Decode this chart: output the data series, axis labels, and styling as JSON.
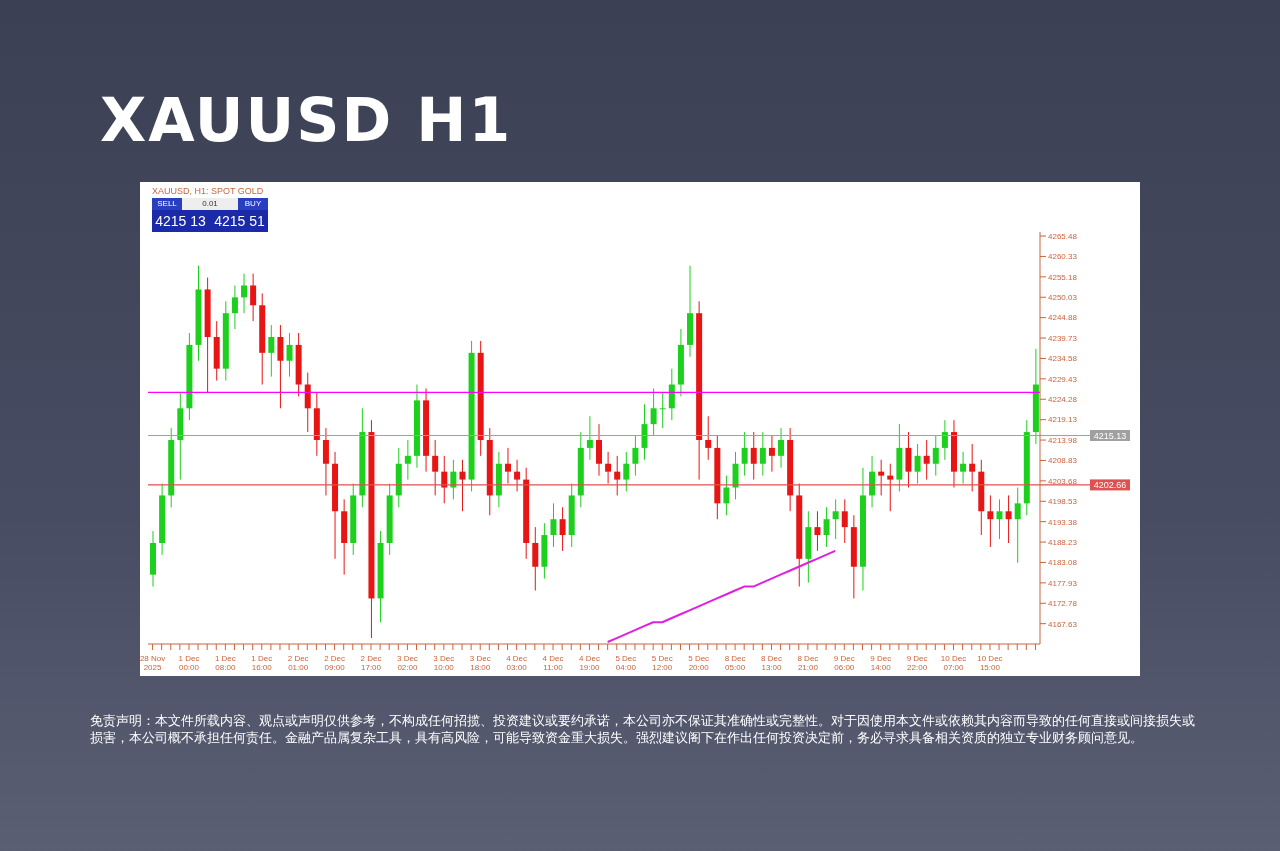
{
  "chart_data": {
    "type": "candlestick",
    "title": "XAUUSD H1",
    "categories": [
      "28 Nov 2025",
      null,
      null,
      null,
      "1 Dec 00:00",
      null,
      null,
      null,
      "1 Dec 08:00",
      null,
      null,
      null,
      "1 Dec 16:00",
      null,
      null,
      null,
      "2 Dec 01:00",
      null,
      null,
      null,
      "2 Dec 09:00",
      null,
      null,
      null,
      "2 Dec 17:00",
      null,
      null,
      null,
      "3 Dec 02:00",
      null,
      null,
      null,
      "3 Dec 10:00",
      null,
      null,
      null,
      "3 Dec 18:00",
      null,
      null,
      null,
      "4 Dec 03:00",
      null,
      null,
      null,
      "4 Dec 11:00",
      null,
      null,
      null,
      "4 Dec 19:00",
      null,
      null,
      null,
      "5 Dec 04:00",
      null,
      null,
      null,
      "5 Dec 12:00",
      null,
      null,
      null,
      "5 Dec 20:00",
      null,
      null,
      null,
      "8 Dec 05:00",
      null,
      null,
      null,
      "8 Dec 13:00",
      null,
      null,
      null,
      "8 Dec 21:00",
      null,
      null,
      null,
      "9 Dec 06:00",
      null,
      null,
      null,
      "9 Dec 14:00",
      null,
      null,
      null,
      "9 Dec 22:00",
      null,
      null,
      null,
      "10 Dec 07:00",
      null,
      null,
      null,
      "10 Dec 15:00",
      null,
      null,
      null,
      null,
      null
    ],
    "ohlc": [
      [
        4180,
        4191,
        4177,
        4188
      ],
      [
        4188,
        4203,
        4185,
        4200
      ],
      [
        4200,
        4217,
        4197,
        4214
      ],
      [
        4214,
        4226,
        4204,
        4222
      ],
      [
        4222,
        4241,
        4219,
        4238
      ],
      [
        4238,
        4258,
        4234,
        4252
      ],
      [
        4252,
        4255,
        4226,
        4240
      ],
      [
        4240,
        4244,
        4229,
        4232
      ],
      [
        4232,
        4249,
        4229,
        4246
      ],
      [
        4246,
        4253,
        4242,
        4250
      ],
      [
        4250,
        4256,
        4246,
        4253
      ],
      [
        4253,
        4256,
        4244,
        4248
      ],
      [
        4248,
        4251,
        4228,
        4236
      ],
      [
        4236,
        4243,
        4230,
        4240
      ],
      [
        4240,
        4243,
        4222,
        4234
      ],
      [
        4234,
        4241,
        4230,
        4238
      ],
      [
        4238,
        4241,
        4225,
        4228
      ],
      [
        4228,
        4231,
        4216,
        4222
      ],
      [
        4222,
        4226,
        4210,
        4214
      ],
      [
        4214,
        4217,
        4200,
        4208
      ],
      [
        4208,
        4211,
        4184,
        4196
      ],
      [
        4196,
        4199,
        4180,
        4188
      ],
      [
        4188,
        4203,
        4185,
        4200
      ],
      [
        4200,
        4222,
        4197,
        4216
      ],
      [
        4216,
        4219,
        4164,
        4174
      ],
      [
        4174,
        4191,
        4168,
        4188
      ],
      [
        4188,
        4203,
        4185,
        4200
      ],
      [
        4200,
        4212,
        4197,
        4208
      ],
      [
        4208,
        4214,
        4204,
        4210
      ],
      [
        4210,
        4228,
        4207,
        4224
      ],
      [
        4224,
        4227,
        4206,
        4210
      ],
      [
        4210,
        4214,
        4200,
        4206
      ],
      [
        4206,
        4210,
        4198,
        4202
      ],
      [
        4202,
        4209,
        4199,
        4206
      ],
      [
        4206,
        4209,
        4196,
        4204
      ],
      [
        4204,
        4239,
        4201,
        4236
      ],
      [
        4236,
        4239,
        4210,
        4214
      ],
      [
        4214,
        4217,
        4195,
        4200
      ],
      [
        4200,
        4211,
        4197,
        4208
      ],
      [
        4208,
        4212,
        4203,
        4206
      ],
      [
        4206,
        4209,
        4201,
        4204
      ],
      [
        4204,
        4207,
        4184,
        4188
      ],
      [
        4188,
        4192,
        4176,
        4182
      ],
      [
        4182,
        4193,
        4179,
        4190
      ],
      [
        4190,
        4198,
        4187,
        4194
      ],
      [
        4194,
        4197,
        4186,
        4190
      ],
      [
        4190,
        4203,
        4187,
        4200
      ],
      [
        4200,
        4216,
        4197,
        4212
      ],
      [
        4212,
        4220,
        4209,
        4214
      ],
      [
        4214,
        4218,
        4205,
        4208
      ],
      [
        4208,
        4211,
        4203,
        4206
      ],
      [
        4206,
        4210,
        4200,
        4204
      ],
      [
        4204,
        4211,
        4201,
        4208
      ],
      [
        4208,
        4215,
        4205,
        4212
      ],
      [
        4212,
        4223,
        4209,
        4218
      ],
      [
        4218,
        4227,
        4215,
        4222
      ],
      [
        4222,
        4226,
        4217,
        4222
      ],
      [
        4222,
        4232,
        4219,
        4228
      ],
      [
        4228,
        4242,
        4225,
        4238
      ],
      [
        4238,
        4258,
        4235,
        4246
      ],
      [
        4246,
        4249,
        4204,
        4214
      ],
      [
        4214,
        4220,
        4209,
        4212
      ],
      [
        4212,
        4215,
        4194,
        4198
      ],
      [
        4198,
        4205,
        4195,
        4202
      ],
      [
        4202,
        4211,
        4199,
        4208
      ],
      [
        4208,
        4216,
        4205,
        4212
      ],
      [
        4212,
        4216,
        4204,
        4208
      ],
      [
        4208,
        4216,
        4205,
        4212
      ],
      [
        4212,
        4215,
        4206,
        4210
      ],
      [
        4210,
        4217,
        4207,
        4214
      ],
      [
        4214,
        4217,
        4196,
        4200
      ],
      [
        4200,
        4203,
        4177,
        4184
      ],
      [
        4184,
        4196,
        4178,
        4192
      ],
      [
        4192,
        4196,
        4186,
        4190
      ],
      [
        4190,
        4197,
        4187,
        4194
      ],
      [
        4194,
        4199,
        4189,
        4196
      ],
      [
        4196,
        4199,
        4188,
        4192
      ],
      [
        4192,
        4195,
        4174,
        4182
      ],
      [
        4182,
        4207,
        4176,
        4200
      ],
      [
        4200,
        4210,
        4197,
        4206
      ],
      [
        4206,
        4209,
        4200,
        4205
      ],
      [
        4205,
        4208,
        4196,
        4204
      ],
      [
        4204,
        4218,
        4201,
        4212
      ],
      [
        4212,
        4216,
        4202,
        4206
      ],
      [
        4206,
        4213,
        4203,
        4210
      ],
      [
        4210,
        4214,
        4204,
        4208
      ],
      [
        4208,
        4215,
        4205,
        4212
      ],
      [
        4212,
        4219,
        4209,
        4216
      ],
      [
        4216,
        4219,
        4202,
        4206
      ],
      [
        4206,
        4211,
        4203,
        4208
      ],
      [
        4208,
        4213,
        4201,
        4206
      ],
      [
        4206,
        4209,
        4190,
        4196
      ],
      [
        4196,
        4200,
        4187,
        4194
      ],
      [
        4194,
        4199,
        4189,
        4196
      ],
      [
        4196,
        4200,
        4188,
        4194
      ],
      [
        4194,
        4202,
        4183,
        4198
      ],
      [
        4198,
        4219,
        4195,
        4216
      ],
      [
        4216,
        4237,
        4213,
        4228
      ]
    ],
    "colors": [
      "#1ed01e",
      "#1ed01e",
      "#1ed01e",
      "#1ed01e",
      "#1ed01e",
      "#1ed01e",
      "#e81515",
      "#e81515",
      "#1ed01e",
      "#1ed01e",
      "#1ed01e",
      "#e81515",
      "#e81515",
      "#1ed01e",
      "#e81515",
      "#1ed01e",
      "#e81515",
      "#e81515",
      "#e81515",
      "#e81515",
      "#e81515",
      "#e81515",
      "#1ed01e",
      "#1ed01e",
      "#e81515",
      "#1ed01e",
      "#1ed01e",
      "#1ed01e",
      "#1ed01e",
      "#1ed01e",
      "#e81515",
      "#e81515",
      "#e81515",
      "#1ed01e",
      "#e81515",
      "#1ed01e",
      "#e81515",
      "#e81515",
      "#1ed01e",
      "#e81515",
      "#e81515",
      "#e81515",
      "#e81515",
      "#1ed01e",
      "#1ed01e",
      "#e81515",
      "#1ed01e",
      "#1ed01e",
      "#1ed01e",
      "#e81515",
      "#e81515",
      "#e81515",
      "#1ed01e",
      "#1ed01e",
      "#1ed01e",
      "#1ed01e",
      "#1ed01e",
      "#1ed01e",
      "#1ed01e",
      "#1ed01e",
      "#e81515",
      "#e81515",
      "#e81515",
      "#1ed01e",
      "#1ed01e",
      "#1ed01e",
      "#e81515",
      "#1ed01e",
      "#e81515",
      "#1ed01e",
      "#e81515",
      "#e81515",
      "#1ed01e",
      "#e81515",
      "#1ed01e",
      "#1ed01e",
      "#e81515",
      "#e81515",
      "#1ed01e",
      "#1ed01e",
      "#e81515",
      "#e81515",
      "#1ed01e",
      "#e81515",
      "#1ed01e",
      "#e81515",
      "#1ed01e",
      "#1ed01e",
      "#e81515",
      "#1ed01e",
      "#e81515",
      "#e81515",
      "#e81515",
      "#1ed01e",
      "#e81515",
      "#1ed01e",
      "#1ed01e",
      "#1ed01e"
    ],
    "series": [
      {
        "type": "line",
        "color": "#e020e0",
        "values": [
          null,
          null,
          null,
          null,
          null,
          null,
          null,
          null,
          null,
          null,
          null,
          null,
          null,
          null,
          null,
          null,
          null,
          null,
          null,
          null,
          null,
          null,
          null,
          null,
          null,
          null,
          null,
          null,
          null,
          null,
          null,
          null,
          null,
          null,
          null,
          null,
          null,
          null,
          null,
          null,
          null,
          null,
          null,
          null,
          null,
          null,
          null,
          null,
          null,
          null,
          4163,
          4164,
          4165,
          4166,
          4167,
          4168,
          4168,
          4169,
          4170,
          4171,
          4172,
          4173,
          4174,
          4175,
          4176,
          4177,
          4177,
          4178,
          4179,
          4180,
          4181,
          4182,
          4183,
          4184,
          4185,
          4186,
          null,
          null,
          null,
          null,
          null,
          null,
          null,
          null,
          null,
          null,
          null,
          null,
          null,
          null,
          null,
          null,
          null,
          null,
          null,
          null,
          null,
          null
        ]
      }
    ],
    "ylim": [
      4162.5,
      4266.5
    ],
    "yticks": [
      4265.48,
      4260.33,
      4255.18,
      4250.03,
      4244.88,
      4239.73,
      4234.58,
      4229.43,
      4224.28,
      4219.13,
      4213.98,
      4208.83,
      4203.68,
      4198.53,
      4193.38,
      4188.23,
      4183.08,
      4177.93,
      4172.78,
      4167.63
    ],
    "ref_lines": [
      {
        "axis": "y",
        "value": 4226,
        "color": "#ff00ff"
      },
      {
        "axis": "y",
        "value": 4215.13,
        "label": "4215.13",
        "color": "#a0a0a0"
      },
      {
        "axis": "y",
        "value": 4202.66,
        "label": "4202.66",
        "color": "#e05050"
      }
    ],
    "grid": false,
    "legend": false,
    "annotations": [
      "XAUUSD, H1: SPOT GOLD",
      "SELL",
      "0.01",
      "BUY",
      "4215 13",
      "4215 51",
      "免责声明：本文件所载内容、观点或声明仅供参考，不构成任何招揽、投资建议或要约承诺，本公司亦不保证其准确性或完整性。对于因使用本文件或依赖其内容而导致的任何直接或间接损失或损害，本公司概不承担任何责任。金融产品属复杂工具，具有高风险，可能导致资金重大损失。强烈建议阁下在作出任何投资决定前，务必寻求具备相关资质的独立专业财务顾问意见。"
    ]
  }
}
